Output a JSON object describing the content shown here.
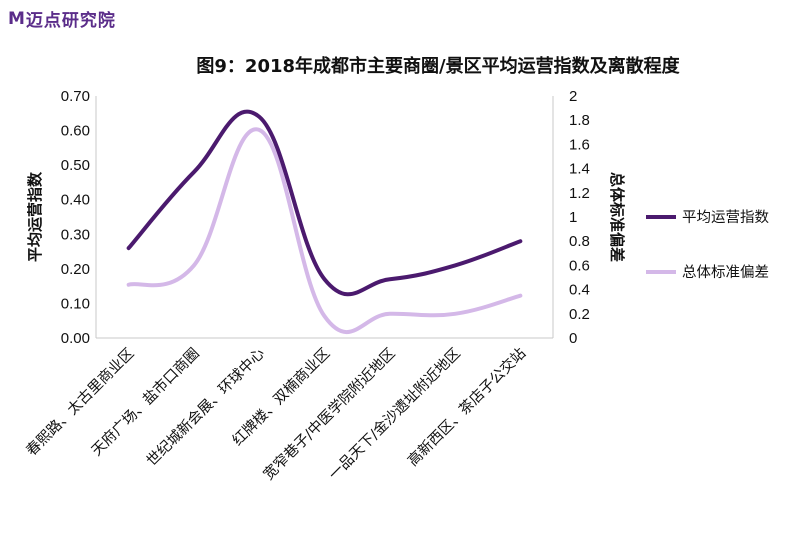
{
  "brand": {
    "name": "迈点研究院",
    "mark": "M"
  },
  "chart_data": {
    "type": "line",
    "title": "图9：2018年成都市主要商圈/景区平均运营指数及离散程度",
    "categories": [
      "春熙路、太古里商业区",
      "天府广场、盐市口商圈",
      "世纪城新会展、环球中心",
      "红牌楼、双楠商业区",
      "宽窄巷子/中医学院附近地区",
      "一品天下/金沙遗址附近地区",
      "高新西区、茶店子公交站"
    ],
    "series": [
      {
        "name": "平均运营指数",
        "axis": "left",
        "color": "#4b1a6e",
        "values": [
          0.26,
          0.48,
          0.64,
          0.17,
          0.17,
          0.21,
          0.28
        ]
      },
      {
        "name": "总体标准偏差",
        "axis": "right",
        "color": "#d4b8e8",
        "values": [
          0.44,
          0.6,
          1.72,
          0.18,
          0.2,
          0.2,
          0.35
        ]
      }
    ],
    "ylabel": "平均运营指数",
    "y2label": "总体标准偏差",
    "ylim": [
      0,
      0.7
    ],
    "y2lim": [
      0,
      2
    ],
    "yticks": [
      "0.00",
      "0.10",
      "0.20",
      "0.30",
      "0.40",
      "0.50",
      "0.60",
      "0.70"
    ],
    "y2ticks": [
      "0",
      "0.2",
      "0.4",
      "0.6",
      "0.8",
      "1",
      "1.2",
      "1.4",
      "1.6",
      "1.8",
      "2"
    ],
    "grid": false,
    "legend": "right"
  }
}
